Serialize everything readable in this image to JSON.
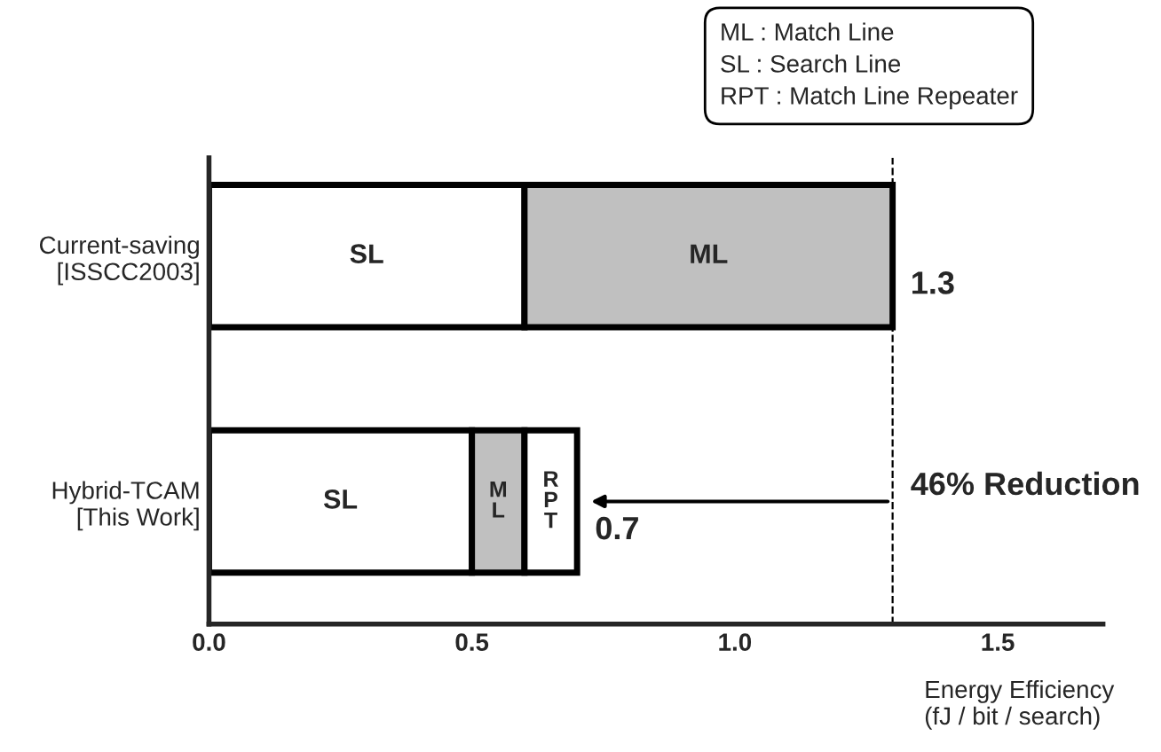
{
  "chart_data": {
    "type": "bar",
    "orientation": "horizontal",
    "stacked": true,
    "categories": [
      "Current-saving\n[ISSCC2003]",
      "Hybrid-TCAM\n[This Work]"
    ],
    "series": [
      {
        "color": "#ffffff",
        "values": [
          0.6,
          0.5
        ],
        "value_labels": [
          "SL",
          "SL"
        ]
      },
      {
        "color": "#c0c0c0",
        "values": [
          0.7,
          0.1
        ],
        "value_labels": [
          "ML",
          "M\nL"
        ]
      },
      {
        "color": "#ffffff",
        "values": [
          null,
          0.1
        ],
        "value_labels": [
          null,
          "R\nP\nT"
        ]
      }
    ],
    "totals": [
      "1.3",
      "0.7"
    ],
    "xlim": [
      0,
      1.7
    ],
    "xticks": [
      {
        "value": 0,
        "label": "0.0"
      },
      {
        "value": 0.5,
        "label": "0.5"
      },
      {
        "value": 1.0,
        "label": "1.0"
      },
      {
        "value": 1.5,
        "label": "1.5"
      }
    ],
    "xlabel": "Energy Efficiency\n(fJ / bit / search)",
    "ref_lines": [
      {
        "axis": "x",
        "value": 1.3,
        "line_style": "dashed",
        "color": "#000000"
      }
    ],
    "annotations": [
      "ML : Match Line\nSL : Search Line\nRPT : Match Line Repeater",
      {
        "text": "46% Reduction",
        "x": 1.3,
        "y": "Hybrid-TCAM\n[This Work]"
      }
    ],
    "grid": false,
    "legend": false
  }
}
